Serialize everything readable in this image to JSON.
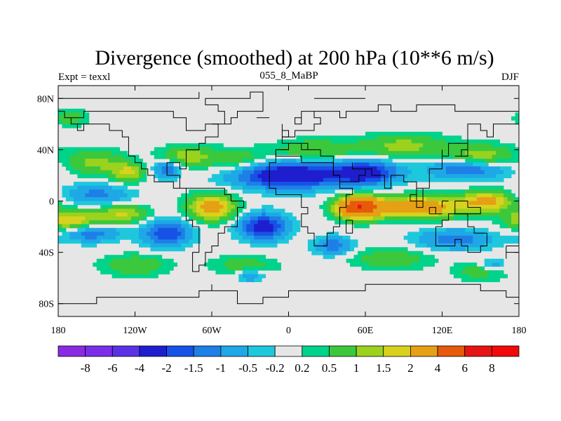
{
  "header": {
    "title": "Divergence (smoothed) at 200 hPa (10**6 m/s)",
    "left": "Expt = texxl",
    "center": "055_8_MaBP",
    "right": "DJF"
  },
  "chart_data": {
    "type": "heatmap",
    "title": "Divergence (smoothed) at 200 hPa (10**6 m/s)",
    "subtitle": "055_8_MaBP",
    "xlabel": "",
    "ylabel": "",
    "xlim": [
      -180,
      180
    ],
    "ylim": [
      -90,
      90
    ],
    "x_ticks": [
      -180,
      -120,
      -60,
      0,
      60,
      120,
      180
    ],
    "x_tick_labels": [
      "180",
      "120W",
      "60W",
      "0",
      "60E",
      "120E",
      "180"
    ],
    "y_ticks": [
      80,
      40,
      0,
      -40,
      -80
    ],
    "y_tick_labels": [
      "80N",
      "40N",
      "0",
      "40S",
      "80S"
    ],
    "levels": [
      "-8",
      "-6",
      "-4",
      "-2",
      "-1.5",
      "-1",
      "-0.5",
      "-0.2",
      "0.2",
      "0.5",
      "1",
      "1.5",
      "2",
      "4",
      "6",
      "8"
    ],
    "level_values": [
      -8,
      -6,
      -4,
      -2,
      -1.5,
      -1,
      -0.5,
      -0.2,
      0.2,
      0.5,
      1,
      1.5,
      2,
      4,
      6,
      8
    ],
    "colors": [
      "#8a2be2",
      "#7b2ee8",
      "#5a32e6",
      "#1e1ecf",
      "#1652e6",
      "#1e7fe6",
      "#1ea8e6",
      "#1ec8dc",
      "#e6e6e6",
      "#00d38a",
      "#3cc83c",
      "#9ad21e",
      "#d8d21e",
      "#e6a014",
      "#e65a0a",
      "#e61414",
      "#f00a0a"
    ],
    "features": [
      {
        "lon": -150,
        "lat": 30,
        "value": 1.2,
        "lon_w": 22,
        "lat_w": 10
      },
      {
        "lon": -125,
        "lat": 22,
        "value": 1.6,
        "lon_w": 12,
        "lat_w": 7
      },
      {
        "lon": -80,
        "lat": 35,
        "value": 1.3,
        "lon_w": 20,
        "lat_w": 8
      },
      {
        "lon": -40,
        "lat": 32,
        "value": 0.9,
        "lon_w": 25,
        "lat_w": 9
      },
      {
        "lon": 20,
        "lat": 40,
        "value": 1.0,
        "lon_w": 30,
        "lat_w": 8
      },
      {
        "lon": 90,
        "lat": 43,
        "value": 1.2,
        "lon_w": 35,
        "lat_w": 9
      },
      {
        "lon": 150,
        "lat": 35,
        "value": 1.4,
        "lon_w": 25,
        "lat_w": 9
      },
      {
        "lon": -170,
        "lat": 65,
        "value": 0.9,
        "lon_w": 12,
        "lat_w": 6
      },
      {
        "lon": -150,
        "lat": 5,
        "value": -1.2,
        "lon_w": 25,
        "lat_w": 8
      },
      {
        "lon": -95,
        "lat": 25,
        "value": -1.5,
        "lon_w": 10,
        "lat_w": 7
      },
      {
        "lon": 0,
        "lat": 20,
        "value": -3.0,
        "lon_w": 40,
        "lat_w": 10
      },
      {
        "lon": 60,
        "lat": 22,
        "value": -2.5,
        "lon_w": 25,
        "lat_w": 9
      },
      {
        "lon": 140,
        "lat": 25,
        "value": -1.6,
        "lon_w": 30,
        "lat_w": 8
      },
      {
        "lon": -170,
        "lat": -15,
        "value": 2.0,
        "lon_w": 20,
        "lat_w": 8
      },
      {
        "lon": -130,
        "lat": -10,
        "value": 1.6,
        "lon_w": 20,
        "lat_w": 7
      },
      {
        "lon": -60,
        "lat": -5,
        "value": 2.5,
        "lon_w": 18,
        "lat_w": 10
      },
      {
        "lon": 55,
        "lat": -5,
        "value": 5.5,
        "lon_w": 16,
        "lat_w": 8
      },
      {
        "lon": 100,
        "lat": -5,
        "value": 3.0,
        "lon_w": 35,
        "lat_w": 8
      },
      {
        "lon": 155,
        "lat": 0,
        "value": 2.2,
        "lon_w": 20,
        "lat_w": 8
      },
      {
        "lon": -155,
        "lat": -25,
        "value": -1.4,
        "lon_w": 22,
        "lat_w": 7
      },
      {
        "lon": -95,
        "lat": -25,
        "value": -2.0,
        "lon_w": 18,
        "lat_w": 10
      },
      {
        "lon": -20,
        "lat": -20,
        "value": -2.5,
        "lon_w": 18,
        "lat_w": 10
      },
      {
        "lon": 35,
        "lat": -35,
        "value": -1.4,
        "lon_w": 14,
        "lat_w": 7
      },
      {
        "lon": 130,
        "lat": -30,
        "value": -1.3,
        "lon_w": 30,
        "lat_w": 8
      },
      {
        "lon": -120,
        "lat": -50,
        "value": 1.0,
        "lon_w": 25,
        "lat_w": 8
      },
      {
        "lon": -35,
        "lat": -50,
        "value": 0.8,
        "lon_w": 25,
        "lat_w": 7
      },
      {
        "lon": 80,
        "lat": -45,
        "value": 0.9,
        "lon_w": 30,
        "lat_w": 8
      },
      {
        "lon": 150,
        "lat": -55,
        "value": 0.8,
        "lon_w": 20,
        "lat_w": 7
      },
      {
        "lon": -30,
        "lat": -58,
        "value": -1.0,
        "lon_w": 10,
        "lat_w": 5
      },
      {
        "lon": 160,
        "lat": -50,
        "value": -0.9,
        "lon_w": 10,
        "lat_w": 5
      }
    ]
  }
}
